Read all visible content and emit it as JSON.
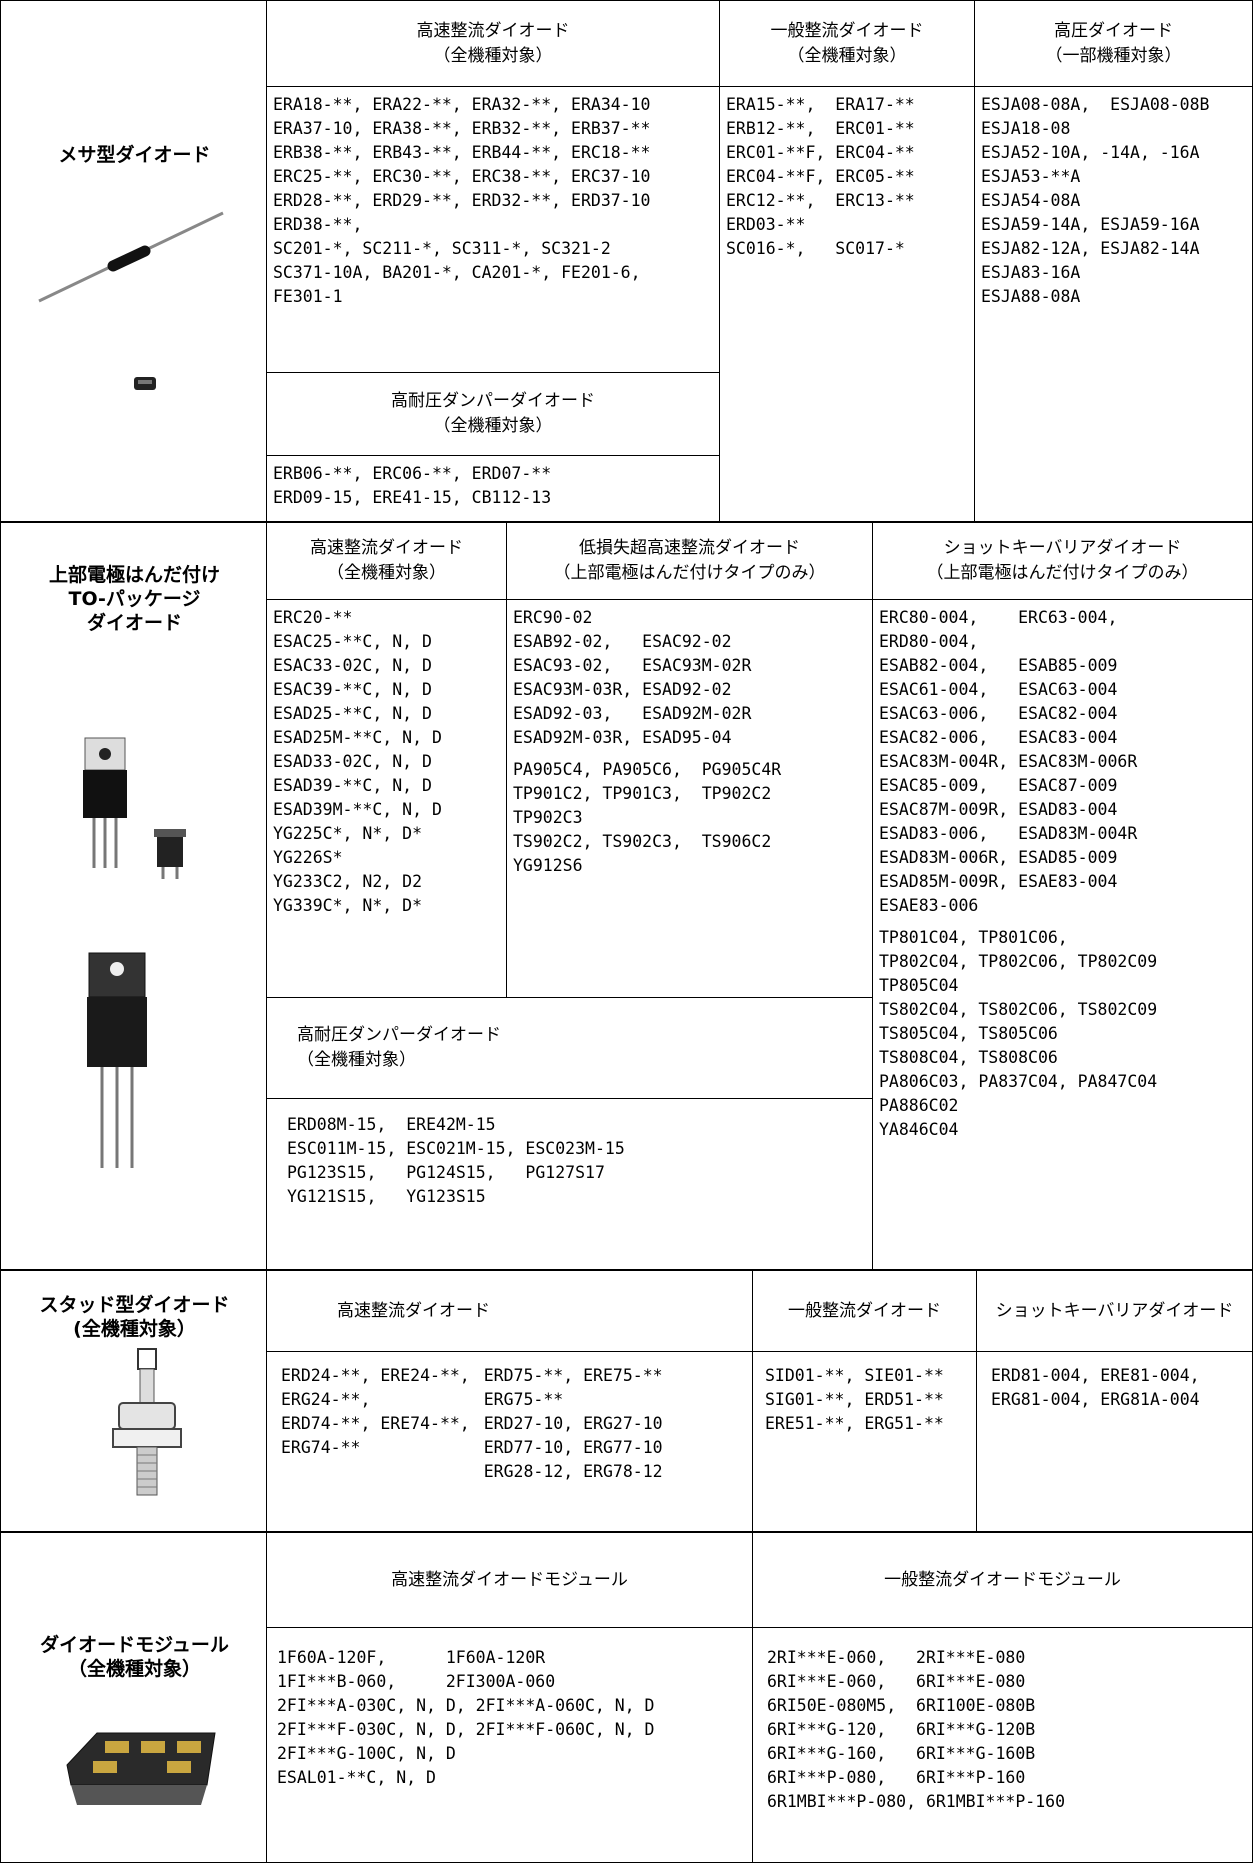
{
  "sections": [
    {
      "title": [
        "メサ型ダイオード"
      ],
      "cells": [
        {
          "header": [
            "高速整流ダイオード",
            "（全機種対象）"
          ],
          "body": [
            [
              "ERA18-**, ERA22-**, ERA32-**, ERA34-10",
              "ERA37-10, ERA38-**, ERB32-**, ERB37-**",
              "ERB38-**, ERB43-**, ERB44-**, ERC18-**",
              "ERC25-**, ERC30-**, ERC38-**, ERC37-10",
              "ERD28-**, ERD29-**, ERD32-**, ERD37-10",
              "ERD38-**,",
              "SC201-*, SC211-*, SC311-*, SC321-2",
              "SC371-10A, BA201-*, CA201-*, FE201-6,",
              "FE301-1"
            ]
          ]
        },
        {
          "header": [
            "高耐圧ダンパーダイオード",
            "（全機種対象）"
          ],
          "body": [
            [
              "ERB06-**, ERC06-**, ERD07-**",
              "ERD09-15, ERE41-15, CB112-13"
            ]
          ]
        },
        {
          "header": [
            "一般整流ダイオード",
            "（全機種対象）"
          ],
          "body": [
            [
              "ERA15-**,  ERA17-**",
              "ERB12-**,  ERC01-**",
              "ERC01-**F, ERC04-**",
              "ERC04-**F, ERC05-**",
              "ERC12-**,  ERC13-**",
              "ERD03-**",
              "SC016-*,   SC017-*"
            ]
          ]
        },
        {
          "header": [
            "高圧ダイオード",
            "（一部機種対象）"
          ],
          "body": [
            [
              "ESJA08-08A,  ESJA08-08B",
              "ESJA18-08",
              "ESJA52-10A, -14A, -16A",
              "ESJA53-**A",
              "ESJA54-08A",
              "ESJA59-14A, ESJA59-16A",
              "ESJA82-12A, ESJA82-14A",
              "ESJA83-16A",
              "ESJA88-08A"
            ]
          ]
        }
      ]
    },
    {
      "title": [
        "上部電極はんだ付け",
        "TO-パッケージ",
        "ダイオード"
      ],
      "cells": [
        {
          "header": [
            "高速整流ダイオード",
            "（全機種対象）"
          ],
          "body": [
            [
              "ERC20-**",
              "ESAC25-**C, N, D",
              "ESAC33-02C, N, D",
              "ESAC39-**C, N, D",
              "ESAD25-**C, N, D",
              "ESAD25M-**C, N, D",
              "ESAD33-02C, N, D",
              "ESAD39-**C, N, D",
              "ESAD39M-**C, N, D",
              "YG225C*, N*, D*",
              "YG226S*",
              "YG233C2, N2, D2",
              "YG339C*, N*, D*"
            ]
          ]
        },
        {
          "header": [
            "低損失超高速整流ダイオード",
            "（上部電極はんだ付けタイプのみ）"
          ],
          "body": [
            [
              "ERC90-02",
              "ESAB92-02,   ESAC92-02",
              "ESAC93-02,   ESAC93M-02R",
              "ESAC93M-03R, ESAD92-02",
              "ESAD92-03,   ESAD92M-02R",
              "ESAD92M-03R, ESAD95-04"
            ],
            [
              "PA905C4, PA905C6,  PG905C4R",
              "TP901C2, TP901C3,  TP902C2",
              "TP902C3",
              "TS902C2, TS902C3,  TS906C2",
              "YG912S6"
            ]
          ]
        },
        {
          "header": [
            "高耐圧ダンパーダイオード",
            "（全機種対象）"
          ],
          "body": [
            [
              "ERD08M-15,  ERE42M-15",
              "ESC011M-15, ESC021M-15, ESC023M-15",
              "PG123S15,   PG124S15,   PG127S17",
              "YG121S15,   YG123S15"
            ]
          ]
        },
        {
          "header": [
            "ショットキーバリアダイオード",
            "（上部電極はんだ付けタイプのみ）"
          ],
          "body": [
            [
              "ERC80-004,    ERC63-004,",
              "ERD80-004,",
              "ESAB82-004,   ESAB85-009",
              "ESAC61-004,   ESAC63-004",
              "ESAC63-006,   ESAC82-004",
              "ESAC82-006,   ESAC83-004",
              "ESAC83M-004R, ESAC83M-006R",
              "ESAC85-009,   ESAC87-009",
              "ESAC87M-009R, ESAD83-004",
              "ESAD83-006,   ESAD83M-004R",
              "ESAD83M-006R, ESAD85-009",
              "ESAD85M-009R, ESAE83-004",
              "ESAE83-006"
            ],
            [
              "TP801C04, TP801C06,",
              "TP802C04, TP802C06, TP802C09",
              "TP805C04",
              "TS802C04, TS802C06, TS802C09",
              "TS805C04, TS805C06",
              "TS808C04, TS808C06",
              "PA806C03, PA837C04, PA847C04",
              "PA886C02",
              "YA846C04"
            ]
          ]
        }
      ]
    },
    {
      "title": [
        "スタッド型ダイオード",
        "(全機種対象）"
      ],
      "cells": [
        {
          "header": [
            "高速整流ダイオード"
          ],
          "body": [
            [
              "ERD24-**, ERE24-**,",
              "ERG24-**,",
              "ERD74-**, ERE74-**,",
              "ERG74-**"
            ],
            [
              "ERD75-**, ERE75-**",
              "ERG75-**",
              "ERD27-10, ERG27-10",
              "ERD77-10, ERG77-10",
              "ERG28-12, ERG78-12"
            ]
          ]
        },
        {
          "header": [
            "一般整流ダイオード"
          ],
          "body": [
            [
              "SID01-**, SIE01-**",
              "SIG01-**, ERD51-**",
              "ERE51-**, ERG51-**"
            ]
          ]
        },
        {
          "header": [
            "ショットキーバリアダイオード"
          ],
          "body": [
            [
              "ERD81-004, ERE81-004,",
              "ERG81-004, ERG81A-004"
            ]
          ]
        }
      ]
    },
    {
      "title": [
        "ダイオードモジュール",
        "（全機種対象）"
      ],
      "cells": [
        {
          "header": [
            "高速整流ダイオードモジュール"
          ],
          "body": [
            [
              "1F60A-120F,      1F60A-120R",
              "1FI***B-060,     2FI300A-060",
              "2FI***A-030C, N, D, 2FI***A-060C, N, D",
              "2FI***F-030C, N, D, 2FI***F-060C, N, D",
              "2FI***G-100C, N, D",
              "ESAL01-**C, N, D"
            ]
          ]
        },
        {
          "header": [
            "一般整流ダイオードモジュール"
          ],
          "body": [
            [
              "2RI***E-060,   2RI***E-080",
              "6RI***E-060,   6RI***E-080",
              "6RI50E-080M5,  6RI100E-080B",
              "6RI***G-120,   6RI***G-120B",
              "6RI***G-160,   6RI***G-160B",
              "6RI***P-080,   6RI***P-160",
              "6R1MBI***P-080, 6R1MBI***P-160"
            ]
          ]
        }
      ]
    }
  ]
}
